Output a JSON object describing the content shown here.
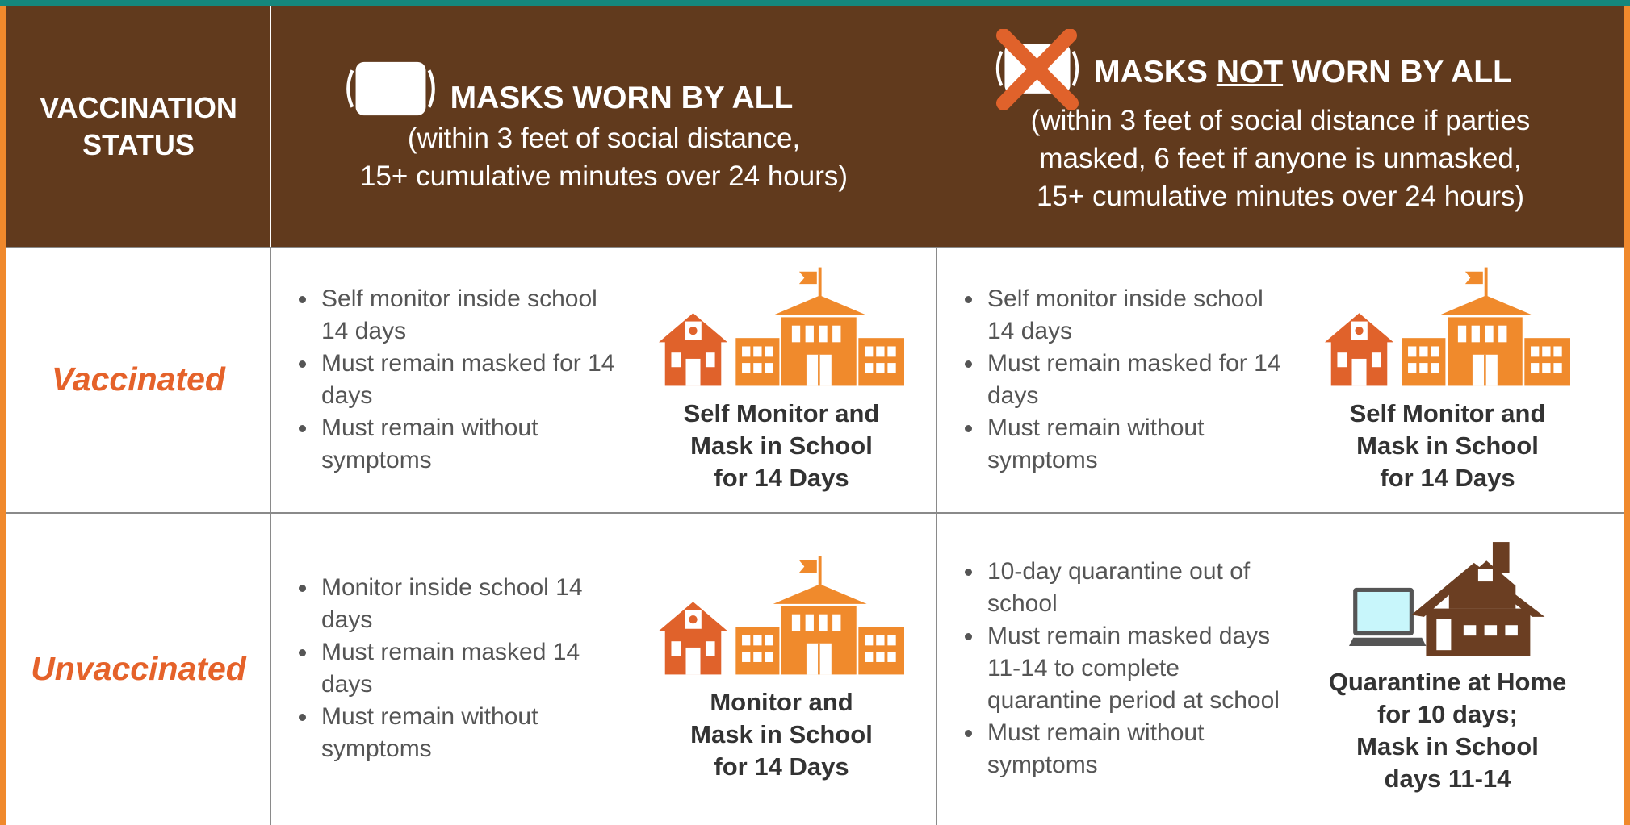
{
  "header": {
    "status_label": [
      "VACCINATION",
      "STATUS"
    ],
    "masked": {
      "title": "MASKS WORN BY ALL",
      "subtitle": [
        "(within 3 feet of social distance,",
        "15+ cumulative minutes over 24 hours)"
      ]
    },
    "unmasked": {
      "title_parts": [
        "MASKS ",
        "NOT",
        " WORN BY ALL"
      ],
      "subtitle": [
        "(within 3 feet of social distance if parties",
        "masked, 6 feet if anyone is unmasked,",
        "15+ cumulative minutes over 24 hours)"
      ]
    }
  },
  "rows": [
    {
      "label": "Vaccinated",
      "cells": [
        {
          "bullets": [
            "Self monitor inside school 14 days",
            "Must remain masked for 14 days",
            "Must remain without symptoms"
          ],
          "caption": [
            "Self Monitor and",
            "Mask in School",
            "for 14 Days"
          ]
        },
        {
          "bullets": [
            "Self monitor inside school 14 days",
            "Must remain masked for 14 days",
            "Must remain without symptoms"
          ],
          "caption": [
            "Self Monitor and",
            "Mask in School",
            "for 14 Days"
          ]
        }
      ]
    },
    {
      "label": "Unvaccinated",
      "cells": [
        {
          "bullets": [
            "Monitor inside school 14 days",
            "Must remain masked 14 days",
            "Must remain without symptoms"
          ],
          "caption": [
            "Monitor and",
            "Mask in School",
            "for 14 Days"
          ]
        },
        {
          "bullets": [
            "10-day quarantine out of school",
            "Must remain masked days 11-14 to complete quarantine period at school",
            "Must remain without symptoms"
          ],
          "caption": [
            "Quarantine at Home",
            "for 10 days;",
            "Mask in School",
            "days 11-14"
          ]
        }
      ]
    }
  ]
}
